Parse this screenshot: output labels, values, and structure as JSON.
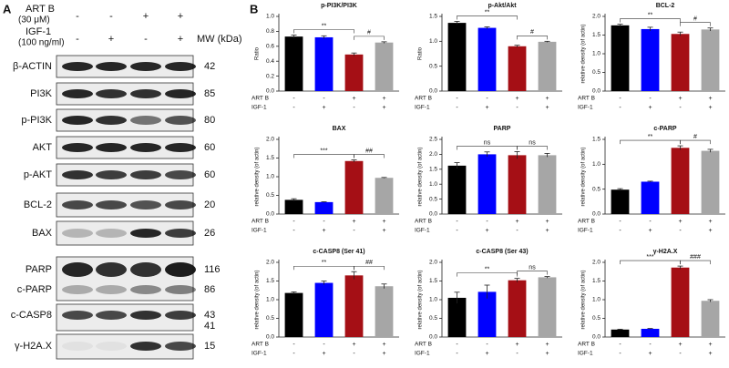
{
  "blot": {
    "label": "A",
    "treatments": [
      {
        "name": "ART B",
        "unit": "(30 μM)",
        "levels": [
          "-",
          "-",
          "+",
          "+"
        ]
      },
      {
        "name": "IGF-1",
        "unit": "(100 ng/ml)",
        "levels": [
          "-",
          "+",
          "-",
          "+"
        ]
      }
    ],
    "mw_header": "MW (kDa)",
    "rows": [
      {
        "label": "β-ACTIN",
        "mw": [
          42
        ]
      },
      {
        "label": "PI3K",
        "mw": [
          85
        ]
      },
      {
        "label": "p-PI3K",
        "mw": [
          80
        ]
      },
      {
        "label": "AKT",
        "mw": [
          60
        ]
      },
      {
        "label": "p-AKT",
        "mw": [
          60
        ]
      },
      {
        "label": "BCL-2",
        "mw": [
          20
        ]
      },
      {
        "label": "BAX",
        "mw": [
          26
        ]
      },
      {
        "label": "PARP",
        "mw": [
          116
        ]
      },
      {
        "label": "c-PARP",
        "mw": [
          86
        ]
      },
      {
        "label": "c-CASP8",
        "mw": [
          43,
          41
        ]
      },
      {
        "label": "γ-H2A.X",
        "mw": [
          15
        ]
      }
    ]
  },
  "panel_b_label": "B",
  "chart_data": [
    {
      "type": "bar",
      "title": "p-PI3K/PI3K",
      "y_label": "Ratio",
      "values": [
        0.73,
        0.72,
        0.49,
        0.65
      ],
      "errors": [
        0.02,
        0.02,
        0.02,
        0.01
      ],
      "colors": [
        "#000000",
        "#0000ff",
        "#a50f15",
        "#a6a6a6"
      ],
      "ylim": [
        0,
        1
      ],
      "yticks": [
        {
          "value": 0,
          "label": "0.0"
        },
        0.2,
        0.4,
        0.6,
        0.8,
        {
          "value": 1,
          "label": "1.0"
        }
      ],
      "conditions": [
        {
          "name": "ART B",
          "levels": [
            "-",
            "-",
            "+",
            "+"
          ]
        },
        {
          "name": "IGF-1",
          "levels": [
            "-",
            "+",
            "-",
            "+"
          ]
        }
      ],
      "brackets": [
        {
          "from": 0,
          "to": 2,
          "label": "**"
        },
        {
          "from": 2,
          "to": 3,
          "label": "#"
        }
      ]
    },
    {
      "type": "bar",
      "title": "p-Akt/Akt",
      "y_label": "Ratio",
      "values": [
        1.37,
        1.27,
        0.9,
        0.99
      ],
      "errors": [
        0.03,
        0.02,
        0.02,
        0.01
      ],
      "colors": [
        "#000000",
        "#0000ff",
        "#a50f15",
        "#a6a6a6"
      ],
      "ylim": [
        0,
        1.5
      ],
      "yticks": [
        {
          "value": 0,
          "label": "0.0"
        },
        0.5,
        {
          "value": 1,
          "label": "1.0"
        },
        1.5
      ],
      "conditions": [
        {
          "name": "ART B",
          "levels": [
            "-",
            "-",
            "+",
            "+"
          ]
        },
        {
          "name": "IGF-1",
          "levels": [
            "-",
            "+",
            "-",
            "+"
          ]
        }
      ],
      "brackets": [
        {
          "from": 0,
          "to": 2,
          "label": "**"
        },
        {
          "from": 2,
          "to": 3,
          "label": "#"
        }
      ]
    },
    {
      "type": "bar",
      "title": "BCL-2",
      "y_label": "relative density (of actin)",
      "values": [
        1.76,
        1.66,
        1.53,
        1.65
      ],
      "errors": [
        0.03,
        0.05,
        0.05,
        0.04
      ],
      "colors": [
        "#000000",
        "#0000ff",
        "#a50f15",
        "#a6a6a6"
      ],
      "ylim": [
        0,
        2
      ],
      "yticks": [
        {
          "value": 0,
          "label": "0.0"
        },
        0.5,
        {
          "value": 1,
          "label": "1.0"
        },
        1.5,
        {
          "value": 2,
          "label": "2.0"
        }
      ],
      "conditions": [
        {
          "name": "ART B",
          "levels": [
            "-",
            "-",
            "+",
            "+"
          ]
        },
        {
          "name": "IGF-1",
          "levels": [
            "-",
            "+",
            "-",
            "+"
          ]
        }
      ],
      "brackets": [
        {
          "from": 0,
          "to": 2,
          "label": "**"
        },
        {
          "from": 2,
          "to": 3,
          "label": "#"
        }
      ]
    },
    {
      "type": "bar",
      "title": "BAX",
      "y_label": "relative density (of actin)",
      "values": [
        0.38,
        0.32,
        1.42,
        0.97
      ],
      "errors": [
        0.03,
        0.01,
        0.03,
        0.01
      ],
      "colors": [
        "#000000",
        "#0000ff",
        "#a50f15",
        "#a6a6a6"
      ],
      "ylim": [
        0,
        2
      ],
      "yticks": [
        {
          "value": 0,
          "label": "0.0"
        },
        0.5,
        {
          "value": 1,
          "label": "1.0"
        },
        1.5,
        {
          "value": 2,
          "label": "2.0"
        }
      ],
      "conditions": [
        {
          "name": "ART B",
          "levels": [
            "-",
            "-",
            "+",
            "+"
          ]
        },
        {
          "name": "IGF-1",
          "levels": [
            "-",
            "+",
            "-",
            "+"
          ]
        }
      ],
      "brackets": [
        {
          "from": 0,
          "to": 2,
          "label": "***"
        },
        {
          "from": 2,
          "to": 3,
          "label": "##"
        }
      ]
    },
    {
      "type": "bar",
      "title": "PARP",
      "y_label": "relative density (of actin)",
      "values": [
        1.62,
        2.0,
        1.97,
        1.97
      ],
      "errors": [
        0.1,
        0.08,
        0.12,
        0.06
      ],
      "colors": [
        "#000000",
        "#0000ff",
        "#a50f15",
        "#a6a6a6"
      ],
      "ylim": [
        0,
        2.5
      ],
      "yticks": [
        {
          "value": 0,
          "label": "0.0"
        },
        0.5,
        {
          "value": 1,
          "label": "1.0"
        },
        1.5,
        {
          "value": 2,
          "label": "2.0"
        },
        2.5
      ],
      "conditions": [
        {
          "name": "ART B",
          "levels": [
            "-",
            "-",
            "+",
            "+"
          ]
        },
        {
          "name": "IGF-1",
          "levels": [
            "-",
            "+",
            "-",
            "+"
          ]
        }
      ],
      "brackets": [
        {
          "from": 0,
          "to": 2,
          "label": "ns"
        },
        {
          "from": 2,
          "to": 3,
          "label": "ns"
        }
      ]
    },
    {
      "type": "bar",
      "title": "c-PARP",
      "y_label": "relative density (of actin)",
      "values": [
        0.49,
        0.65,
        1.33,
        1.27
      ],
      "errors": [
        0.02,
        0.01,
        0.04,
        0.03
      ],
      "colors": [
        "#000000",
        "#0000ff",
        "#a50f15",
        "#a6a6a6"
      ],
      "ylim": [
        0,
        1.5
      ],
      "yticks": [
        {
          "value": 0,
          "label": "0.0"
        },
        0.5,
        {
          "value": 1,
          "label": "1.0"
        },
        1.5
      ],
      "conditions": [
        {
          "name": "ART B",
          "levels": [
            "-",
            "-",
            "+",
            "+"
          ]
        },
        {
          "name": "IGF-1",
          "levels": [
            "-",
            "+",
            "-",
            "+"
          ]
        }
      ],
      "brackets": [
        {
          "from": 0,
          "to": 2,
          "label": "**"
        },
        {
          "from": 2,
          "to": 3,
          "label": "#"
        }
      ]
    },
    {
      "type": "bar",
      "title": "c-CASP8 (Ser 41)",
      "y_label": "relative density (of actin)",
      "values": [
        1.18,
        1.45,
        1.65,
        1.36
      ],
      "errors": [
        0.03,
        0.05,
        0.1,
        0.06
      ],
      "colors": [
        "#000000",
        "#0000ff",
        "#a50f15",
        "#a6a6a6"
      ],
      "ylim": [
        0,
        2
      ],
      "yticks": [
        {
          "value": 0,
          "label": "0.0"
        },
        0.5,
        {
          "value": 1,
          "label": "1.0"
        },
        1.5,
        {
          "value": 2,
          "label": "2.0"
        }
      ],
      "conditions": [
        {
          "name": "ART B",
          "levels": [
            "-",
            "-",
            "+",
            "+"
          ]
        },
        {
          "name": "IGF-1",
          "levels": [
            "-",
            "+",
            "-",
            "+"
          ]
        }
      ],
      "brackets": [
        {
          "from": 0,
          "to": 2,
          "label": "**"
        },
        {
          "from": 2,
          "to": 3,
          "label": "##"
        }
      ]
    },
    {
      "type": "bar",
      "title": "c-CASP8 (Ser 43)",
      "y_label": "relative density (of actin)",
      "values": [
        1.05,
        1.21,
        1.52,
        1.6
      ],
      "errors": [
        0.15,
        0.18,
        0.05,
        0.02
      ],
      "colors": [
        "#000000",
        "#0000ff",
        "#a50f15",
        "#a6a6a6"
      ],
      "ylim": [
        0,
        2
      ],
      "yticks": [
        {
          "value": 0,
          "label": "0.0"
        },
        0.5,
        {
          "value": 1,
          "label": "1.0"
        },
        1.5,
        {
          "value": 2,
          "label": "2.0"
        }
      ],
      "conditions": [
        {
          "name": "ART B",
          "levels": [
            "-",
            "-",
            "+",
            "+"
          ]
        },
        {
          "name": "IGF-1",
          "levels": [
            "-",
            "+",
            "-",
            "+"
          ]
        }
      ],
      "brackets": [
        {
          "from": 0,
          "to": 2,
          "label": "**"
        },
        {
          "from": 2,
          "to": 3,
          "label": "ns"
        }
      ]
    },
    {
      "type": "bar",
      "title": "γ-H2A.X",
      "y_label": "relative density (of actin)",
      "values": [
        0.2,
        0.22,
        1.86,
        0.97
      ],
      "errors": [
        0.01,
        0.01,
        0.04,
        0.03
      ],
      "colors": [
        "#000000",
        "#0000ff",
        "#a50f15",
        "#a6a6a6"
      ],
      "ylim": [
        0,
        2
      ],
      "yticks": [
        {
          "value": 0,
          "label": "0.0"
        },
        0.5,
        {
          "value": 1,
          "label": "1.0"
        },
        1.5,
        {
          "value": 2,
          "label": "2.0"
        }
      ],
      "conditions": [
        {
          "name": "ART B",
          "levels": [
            "-",
            "-",
            "+",
            "+"
          ]
        },
        {
          "name": "IGF-1",
          "levels": [
            "-",
            "+",
            "-",
            "+"
          ]
        }
      ],
      "brackets": [
        {
          "from": 0,
          "to": 2,
          "label": "***"
        },
        {
          "from": 2,
          "to": 3,
          "label": "###"
        }
      ]
    }
  ]
}
